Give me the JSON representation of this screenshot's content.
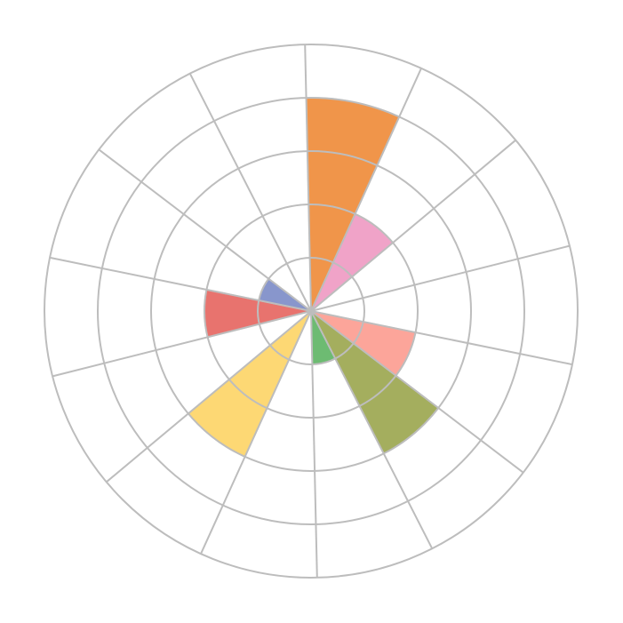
{
  "chart_data": {
    "type": "polar-area",
    "title": "",
    "sector_count": 14,
    "rlim": [
      0,
      5
    ],
    "grid": true,
    "grid_color": "#bdbdbd",
    "values": [
      4,
      2,
      0,
      0,
      2,
      3,
      1,
      0,
      3,
      0,
      2,
      1,
      0,
      0
    ],
    "colors": [
      "#f0954a",
      "#f0a3c8",
      "#ffffff",
      "#ffffff",
      "#fca59a",
      "#a4ae5e",
      "#6dbb72",
      "#ffffff",
      "#fdd874",
      "#ffffff",
      "#e8736e",
      "#8896cc",
      "#ffffff",
      "#ffffff"
    ]
  }
}
